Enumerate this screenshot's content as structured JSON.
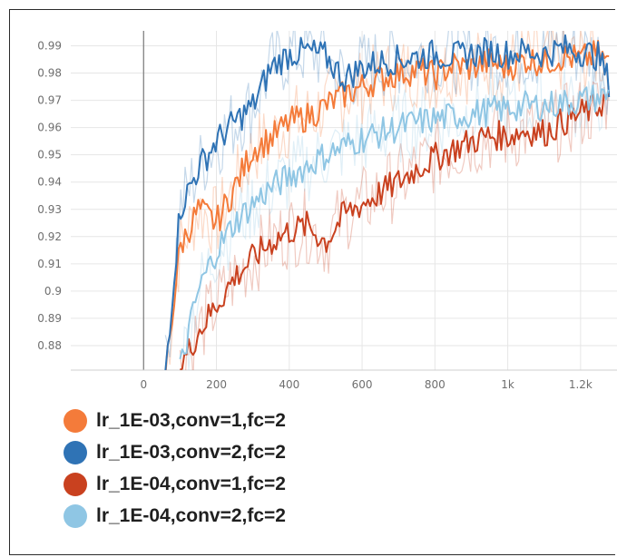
{
  "chart_data": {
    "type": "line",
    "x_ticks": [
      0,
      200,
      400,
      600,
      800,
      "1k",
      "1.2k"
    ],
    "y_ticks": [
      0.88,
      0.89,
      0.9,
      0.91,
      0.92,
      0.93,
      0.94,
      0.95,
      0.96,
      0.97,
      0.98,
      0.99
    ],
    "xlim": [
      -200,
      1300
    ],
    "ylim": [
      0.871,
      0.9955
    ],
    "grid": true,
    "legend_position": "bottom-left",
    "series": [
      {
        "name": "lr_1E-03,conv=1,fc=2",
        "color": "#f47b3a",
        "x": [
          60,
          100,
          150,
          200,
          250,
          300,
          350,
          400,
          450,
          500,
          550,
          600,
          650,
          700,
          750,
          800,
          850,
          900,
          950,
          1000,
          1050,
          1100,
          1150,
          1200,
          1250,
          1280
        ],
        "y": [
          0.87,
          0.916,
          0.93,
          0.925,
          0.938,
          0.952,
          0.956,
          0.962,
          0.964,
          0.968,
          0.972,
          0.975,
          0.978,
          0.98,
          0.981,
          0.979,
          0.983,
          0.982,
          0.984,
          0.982,
          0.985,
          0.984,
          0.986,
          0.985,
          0.987,
          0.983
        ]
      },
      {
        "name": "lr_1E-03,conv=2,fc=2",
        "color": "#2f73b5",
        "x": [
          60,
          100,
          150,
          200,
          250,
          300,
          350,
          400,
          450,
          500,
          550,
          600,
          650,
          700,
          750,
          800,
          850,
          900,
          950,
          1000,
          1050,
          1100,
          1150,
          1200,
          1250,
          1280
        ],
        "y": [
          0.871,
          0.93,
          0.945,
          0.955,
          0.962,
          0.968,
          0.982,
          0.987,
          0.988,
          0.986,
          0.978,
          0.982,
          0.984,
          0.985,
          0.986,
          0.987,
          0.986,
          0.987,
          0.988,
          0.987,
          0.988,
          0.987,
          0.989,
          0.988,
          0.986,
          0.976
        ]
      },
      {
        "name": "lr_1E-04,conv=1,fc=2",
        "color": "#c9411f",
        "x": [
          100,
          150,
          200,
          250,
          300,
          350,
          400,
          450,
          500,
          550,
          600,
          650,
          700,
          750,
          800,
          850,
          900,
          950,
          1000,
          1050,
          1100,
          1150,
          1200,
          1250,
          1280
        ],
        "y": [
          0.872,
          0.885,
          0.895,
          0.905,
          0.912,
          0.918,
          0.922,
          0.924,
          0.918,
          0.928,
          0.932,
          0.936,
          0.94,
          0.945,
          0.949,
          0.952,
          0.955,
          0.957,
          0.957,
          0.959,
          0.958,
          0.962,
          0.965,
          0.968,
          0.972
        ]
      },
      {
        "name": "lr_1E-04,conv=2,fc=2",
        "color": "#8fc6e4",
        "x": [
          100,
          150,
          200,
          250,
          300,
          350,
          400,
          450,
          500,
          550,
          600,
          650,
          700,
          750,
          800,
          850,
          900,
          950,
          1000,
          1050,
          1100,
          1150,
          1200,
          1250,
          1280
        ],
        "y": [
          0.871,
          0.9,
          0.915,
          0.925,
          0.932,
          0.938,
          0.942,
          0.946,
          0.95,
          0.953,
          0.956,
          0.958,
          0.96,
          0.962,
          0.963,
          0.964,
          0.965,
          0.966,
          0.967,
          0.968,
          0.968,
          0.969,
          0.97,
          0.971,
          0.972
        ]
      }
    ]
  }
}
